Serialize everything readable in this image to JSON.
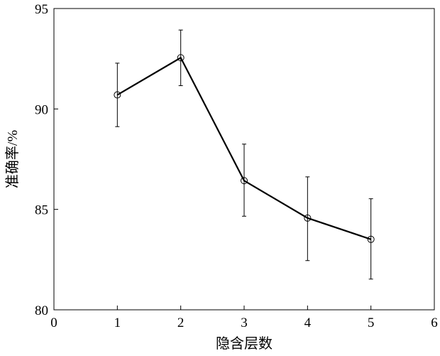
{
  "chart_data": {
    "type": "line",
    "title": "",
    "xlabel": "隐含层数",
    "ylabel": "准确率/%",
    "xlim": [
      0,
      6
    ],
    "ylim": [
      80,
      95
    ],
    "xticks": [
      "0",
      "1",
      "2",
      "3",
      "4",
      "5",
      "6"
    ],
    "yticks": [
      "80",
      "85",
      "90",
      "95"
    ],
    "grid": false,
    "marker": "open-circle",
    "line_color": "#000000",
    "x": [
      1,
      2,
      3,
      4,
      5
    ],
    "y": [
      90.7,
      92.55,
      86.43,
      84.57,
      83.51
    ],
    "error_upper": [
      92.28,
      93.93,
      88.25,
      86.62,
      85.53
    ],
    "error_lower": [
      89.12,
      91.16,
      84.66,
      82.45,
      81.53
    ]
  }
}
